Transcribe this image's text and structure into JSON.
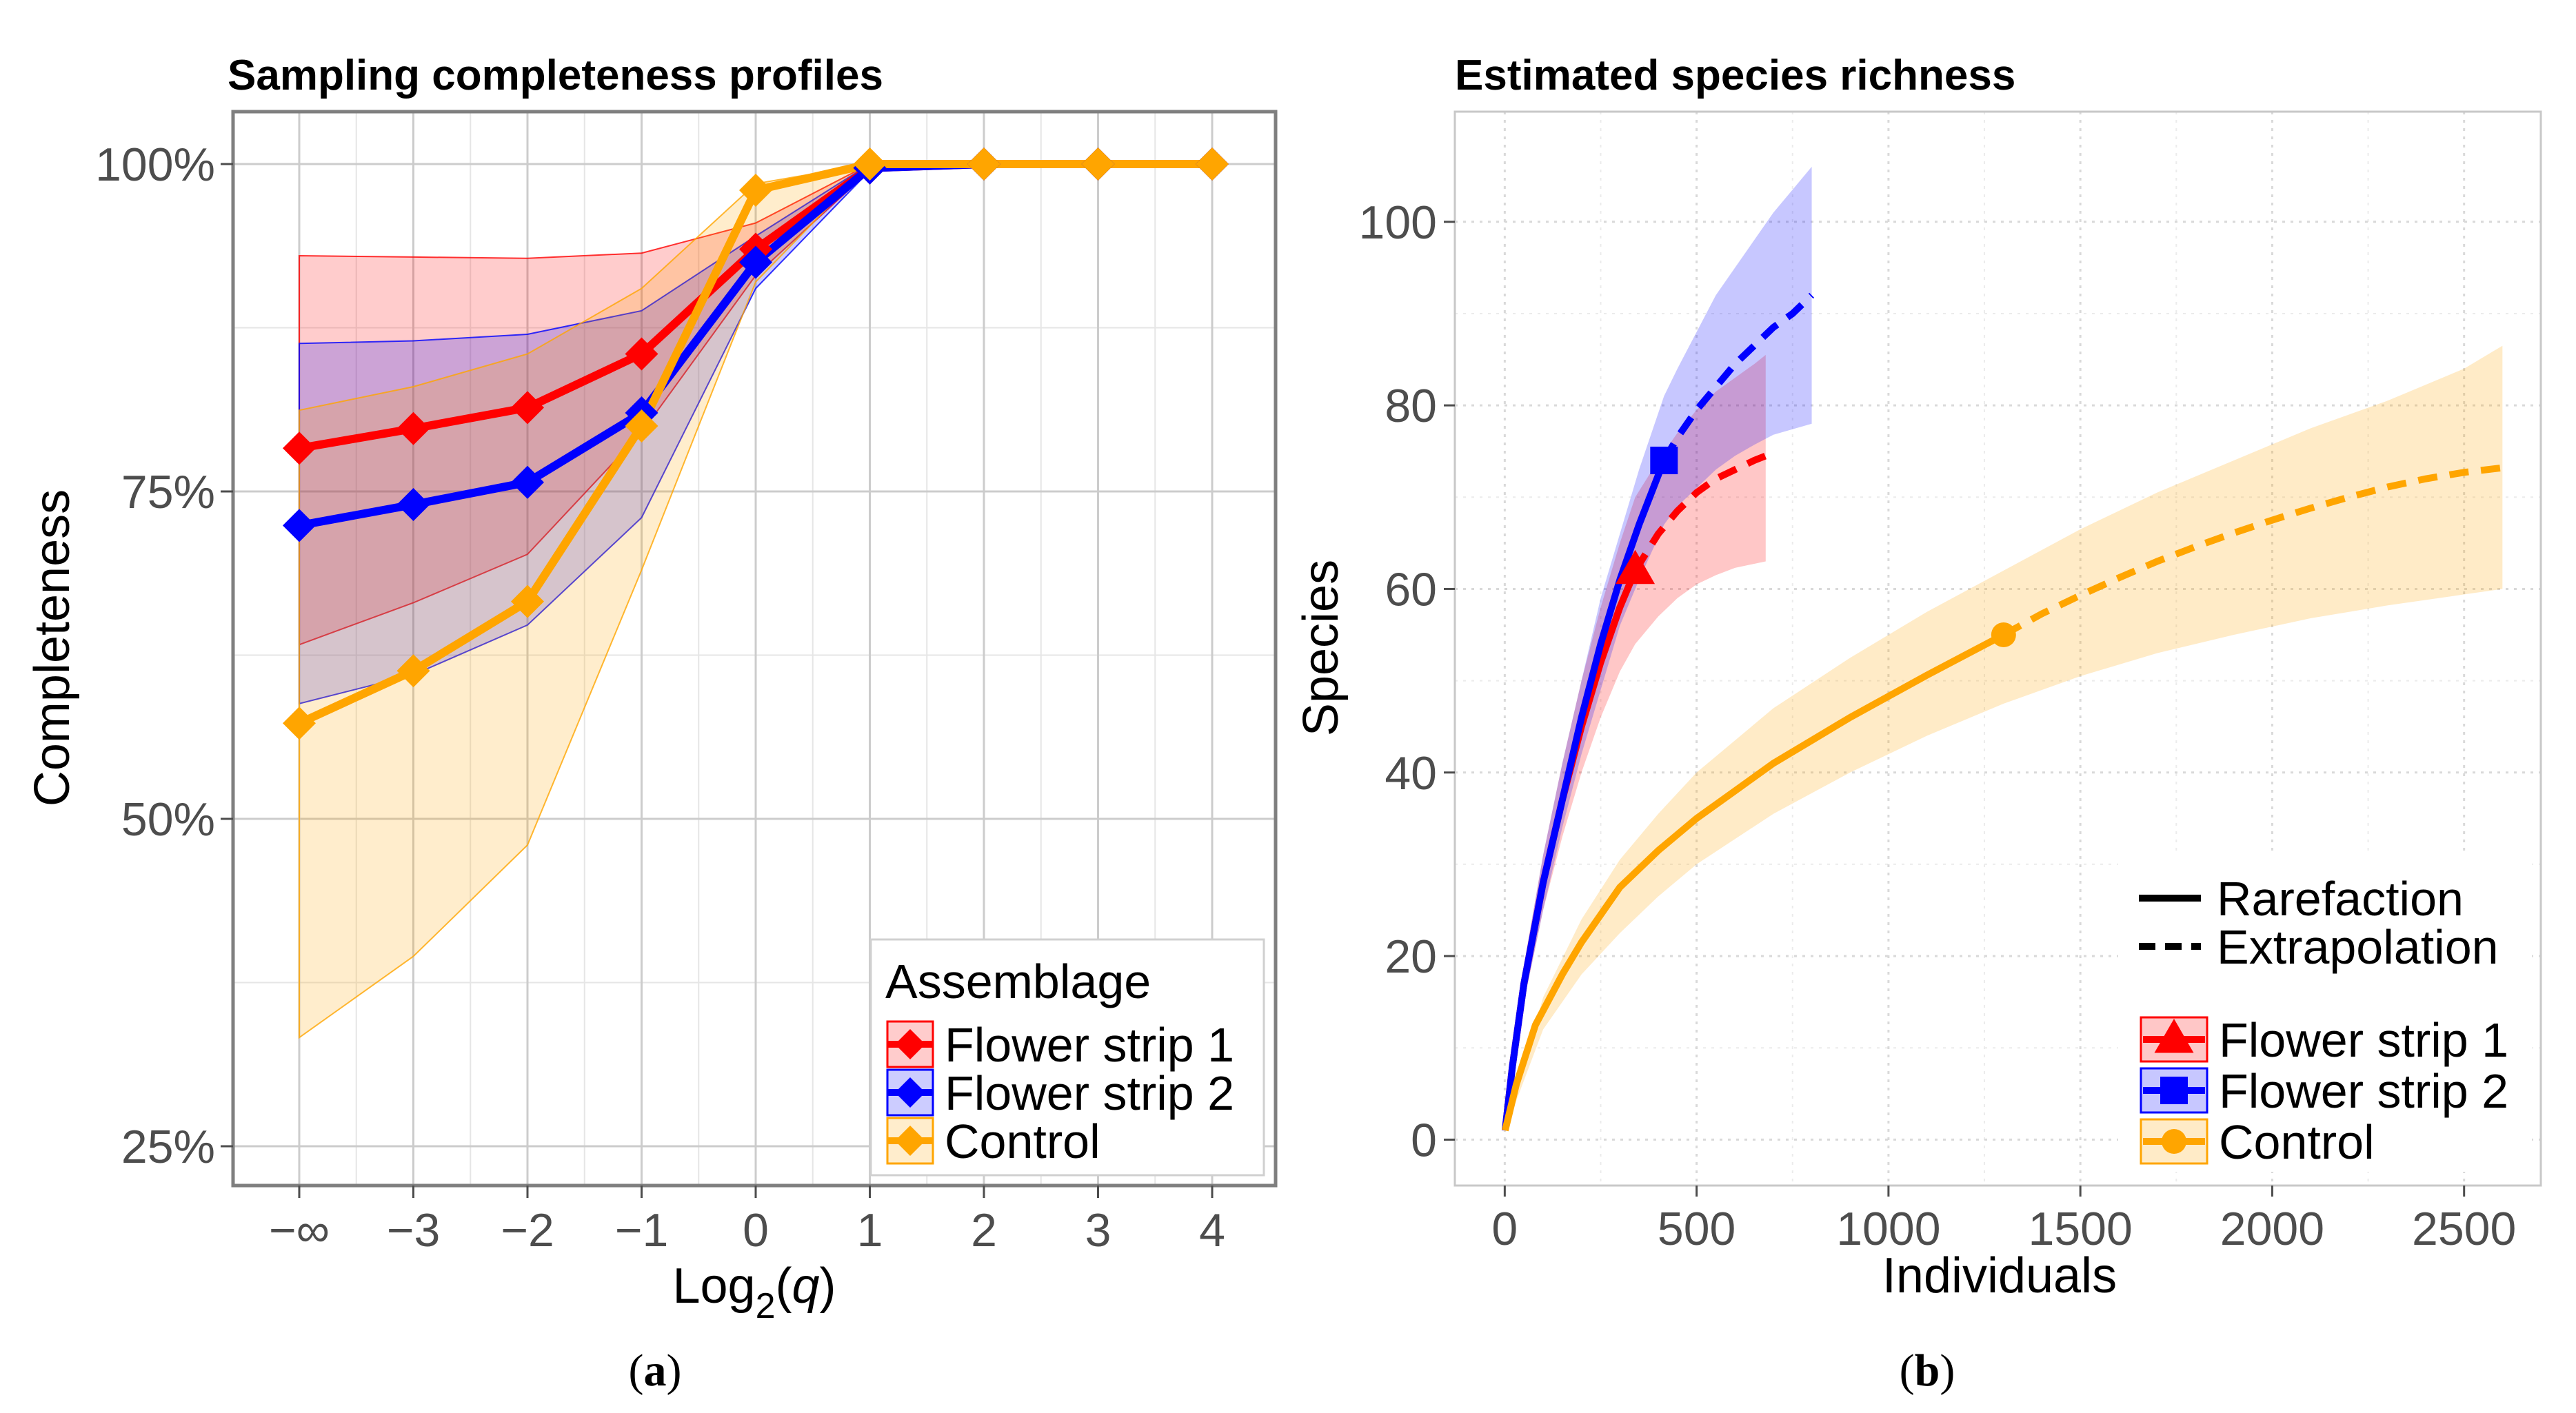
{
  "chart_data": [
    {
      "type": "line",
      "title": "Sampling completeness profiles",
      "xlabel_base": "Log",
      "xlabel_sub": "2",
      "xlabel_paren_open": "(",
      "xlabel_var": "q",
      "xlabel_paren_close": ")",
      "ylabel": "Completeness",
      "x_tick_labels": [
        "−∞",
        "−3",
        "−2",
        "−1",
        "0",
        "1",
        "2",
        "3",
        "4"
      ],
      "y_ticks": [
        0.25,
        0.5,
        0.75,
        1.0
      ],
      "y_tick_labels": [
        "25%",
        "50%",
        "75%",
        "100%"
      ],
      "ylim": [
        0.22,
        1.04
      ],
      "legend": {
        "title": "Assemblage",
        "position": "bottom-right"
      },
      "caption_open": "(",
      "caption_letter": "a",
      "caption_close": ")",
      "series": [
        {
          "name": "Flower strip 1",
          "color": "#ff0000",
          "fill": "#ffb3b3",
          "values": [
            0.783,
            0.798,
            0.814,
            0.855,
            0.935,
            0.997,
            1.0,
            1.0,
            1.0
          ],
          "lower": [
            0.633,
            0.665,
            0.702,
            0.795,
            0.915,
            0.995,
            1.0,
            1.0,
            1.0
          ],
          "upper": [
            0.93,
            0.929,
            0.928,
            0.932,
            0.955,
            1.0,
            1.0,
            1.0,
            1.0
          ]
        },
        {
          "name": "Flower strip 2",
          "color": "#0000ff",
          "fill": "#b3b3ff",
          "values": [
            0.724,
            0.74,
            0.757,
            0.81,
            0.925,
            0.997,
            1.0,
            1.0,
            1.0
          ],
          "lower": [
            0.588,
            0.61,
            0.648,
            0.73,
            0.905,
            0.995,
            1.0,
            1.0,
            1.0
          ],
          "upper": [
            0.863,
            0.865,
            0.87,
            0.888,
            0.945,
            1.0,
            1.0,
            1.0,
            1.0
          ]
        },
        {
          "name": "Control",
          "color": "#ffa500",
          "fill": "#ffe8bf",
          "values": [
            0.573,
            0.613,
            0.666,
            0.8,
            0.98,
            1.0,
            1.0,
            1.0,
            1.0
          ],
          "lower": [
            0.333,
            0.395,
            0.48,
            0.69,
            0.91,
            1.0,
            1.0,
            1.0,
            1.0
          ],
          "upper": [
            0.812,
            0.83,
            0.855,
            0.905,
            0.985,
            1.0,
            1.0,
            1.0,
            1.0
          ]
        }
      ]
    },
    {
      "type": "line",
      "title": "Estimated species richness",
      "xlabel": "Individuals",
      "ylabel": "Species",
      "x_ticks": [
        0,
        500,
        1000,
        1500,
        2000,
        2500
      ],
      "y_ticks": [
        0,
        20,
        40,
        60,
        80,
        100
      ],
      "xlim": [
        -130,
        2700
      ],
      "ylim": [
        -5,
        112
      ],
      "legend": {
        "position": "bottom-right",
        "line_types": [
          "Rarefaction",
          "Extrapolation"
        ]
      },
      "caption_open": "(",
      "caption_letter": "b",
      "caption_close": ")",
      "series": [
        {
          "name": "Flower strip 1",
          "color": "#ff0000",
          "fill": "#ffb3b3",
          "marker": "triangle",
          "reference_point": [
            340,
            62
          ],
          "rarefaction": [
            [
              1,
              1
            ],
            [
              20,
              8
            ],
            [
              50,
              17
            ],
            [
              100,
              28
            ],
            [
              150,
              37
            ],
            [
              200,
              45
            ],
            [
              250,
              52
            ],
            [
              300,
              58
            ],
            [
              340,
              62
            ]
          ],
          "extrapolation": [
            [
              340,
              62
            ],
            [
              400,
              66
            ],
            [
              450,
              68.5
            ],
            [
              500,
              70.5
            ],
            [
              550,
              72
            ],
            [
              600,
              73
            ],
            [
              650,
              74
            ],
            [
              680,
              74.5
            ]
          ],
          "lower": [
            [
              1,
              1
            ],
            [
              50,
              15
            ],
            [
              100,
              25
            ],
            [
              150,
              33
            ],
            [
              200,
              40
            ],
            [
              250,
              46
            ],
            [
              300,
              51
            ],
            [
              340,
              54
            ],
            [
              400,
              57
            ],
            [
              450,
              59
            ],
            [
              500,
              60.5
            ],
            [
              550,
              61.5
            ],
            [
              600,
              62.3
            ],
            [
              680,
              63
            ]
          ],
          "upper": [
            [
              1,
              1
            ],
            [
              50,
              19
            ],
            [
              100,
              31
            ],
            [
              150,
              41
            ],
            [
              200,
              50
            ],
            [
              250,
              58
            ],
            [
              300,
              65
            ],
            [
              340,
              70
            ],
            [
              400,
              74
            ],
            [
              450,
              77
            ],
            [
              500,
              79.5
            ],
            [
              550,
              81.5
            ],
            [
              600,
              83
            ],
            [
              650,
              84.5
            ],
            [
              680,
              85.5
            ]
          ]
        },
        {
          "name": "Flower strip 2",
          "color": "#0000ff",
          "fill": "#b3b3ff",
          "marker": "square",
          "reference_point": [
            415,
            74
          ],
          "rarefaction": [
            [
              1,
              1
            ],
            [
              20,
              8
            ],
            [
              50,
              17
            ],
            [
              100,
              28
            ],
            [
              150,
              37
            ],
            [
              200,
              46
            ],
            [
              250,
              54
            ],
            [
              300,
              61
            ],
            [
              350,
              67
            ],
            [
              415,
              74
            ]
          ],
          "extrapolation": [
            [
              415,
              74
            ],
            [
              450,
              76.5
            ],
            [
              500,
              79.5
            ],
            [
              550,
              82
            ],
            [
              600,
              84.5
            ],
            [
              650,
              86.5
            ],
            [
              700,
              88.5
            ],
            [
              750,
              90
            ],
            [
              800,
              92
            ]
          ],
          "lower": [
            [
              1,
              1
            ],
            [
              50,
              15
            ],
            [
              100,
              25
            ],
            [
              150,
              34
            ],
            [
              200,
              42
            ],
            [
              250,
              49
            ],
            [
              300,
              56
            ],
            [
              350,
              61
            ],
            [
              415,
              67
            ],
            [
              450,
              69
            ],
            [
              500,
              71
            ],
            [
              550,
              73
            ],
            [
              600,
              74.5
            ],
            [
              650,
              75.7
            ],
            [
              700,
              76.8
            ],
            [
              750,
              77.4
            ],
            [
              800,
              78
            ]
          ],
          "upper": [
            [
              1,
              1
            ],
            [
              50,
              19
            ],
            [
              100,
              31
            ],
            [
              150,
              41
            ],
            [
              200,
              50
            ],
            [
              250,
              59
            ],
            [
              300,
              66
            ],
            [
              350,
              73
            ],
            [
              415,
              81
            ],
            [
              450,
              84
            ],
            [
              500,
              88
            ],
            [
              550,
              92
            ],
            [
              600,
              95
            ],
            [
              650,
              98
            ],
            [
              700,
              101
            ],
            [
              750,
              103.5
            ],
            [
              800,
              106
            ]
          ]
        },
        {
          "name": "Control",
          "color": "#ffa500",
          "fill": "#ffe8bf",
          "marker": "circle",
          "reference_point": [
            1300,
            55
          ],
          "rarefaction": [
            [
              1,
              1
            ],
            [
              30,
              6
            ],
            [
              80,
              12.5
            ],
            [
              150,
              18
            ],
            [
              200,
              21.5
            ],
            [
              300,
              27.5
            ],
            [
              400,
              31.5
            ],
            [
              500,
              35
            ],
            [
              600,
              38
            ],
            [
              700,
              41
            ],
            [
              800,
              43.5
            ],
            [
              900,
              46
            ],
            [
              1000,
              48.3
            ],
            [
              1100,
              50.6
            ],
            [
              1200,
              52.8
            ],
            [
              1300,
              55
            ]
          ],
          "extrapolation": [
            [
              1300,
              55
            ],
            [
              1400,
              57.3
            ],
            [
              1500,
              59.3
            ],
            [
              1600,
              61.2
            ],
            [
              1700,
              63
            ],
            [
              1800,
              64.6
            ],
            [
              1900,
              66.1
            ],
            [
              2000,
              67.5
            ],
            [
              2100,
              68.8
            ],
            [
              2200,
              70
            ],
            [
              2300,
              71.1
            ],
            [
              2400,
              72
            ],
            [
              2500,
              72.7
            ],
            [
              2600,
              73.2
            ]
          ],
          "lower": [
            [
              1,
              1
            ],
            [
              100,
              12
            ],
            [
              200,
              18
            ],
            [
              300,
              22.5
            ],
            [
              400,
              26.5
            ],
            [
              500,
              30
            ],
            [
              700,
              35.5
            ],
            [
              900,
              40
            ],
            [
              1100,
              44
            ],
            [
              1300,
              47.5
            ],
            [
              1500,
              50.5
            ],
            [
              1700,
              53
            ],
            [
              1900,
              55
            ],
            [
              2100,
              56.8
            ],
            [
              2300,
              58.2
            ],
            [
              2500,
              59.4
            ],
            [
              2600,
              60
            ]
          ],
          "upper": [
            [
              1,
              1
            ],
            [
              100,
              15.5
            ],
            [
              200,
              24
            ],
            [
              300,
              30.5
            ],
            [
              400,
              35.5
            ],
            [
              500,
              40
            ],
            [
              700,
              47
            ],
            [
              900,
              52.5
            ],
            [
              1100,
              57.5
            ],
            [
              1300,
              62
            ],
            [
              1500,
              66.5
            ],
            [
              1700,
              70.5
            ],
            [
              1900,
              74
            ],
            [
              2100,
              77.5
            ],
            [
              2300,
              80.5
            ],
            [
              2500,
              84
            ],
            [
              2600,
              86.5
            ]
          ]
        }
      ]
    }
  ]
}
